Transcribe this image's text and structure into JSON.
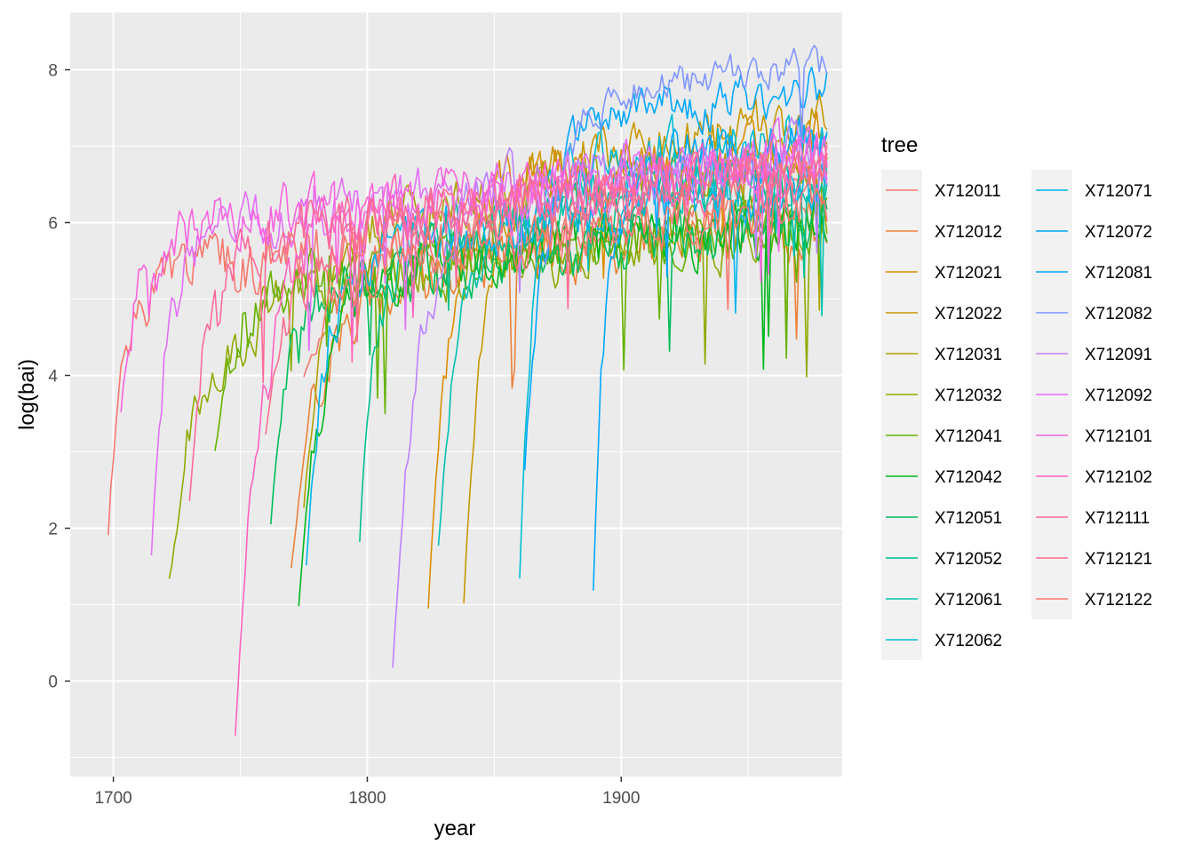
{
  "chart_data": {
    "type": "line",
    "xlabel": "year",
    "ylabel": "log(bai)",
    "xlim": [
      1683,
      1987
    ],
    "ylim": [
      -1.25,
      8.75
    ],
    "x_ticks": [
      1700,
      1800,
      1900
    ],
    "y_ticks": [
      0,
      2,
      4,
      6,
      8
    ],
    "grid": true,
    "background": "#ebebeb",
    "legend": {
      "title": "tree",
      "position": "right",
      "columns": 2
    },
    "x_end": 1981,
    "series": [
      {
        "name": "X712011",
        "color": "#F8766D",
        "start_year": 1698,
        "start_value": 1.9,
        "plateau": 5.8,
        "growth_years": 20,
        "noise": 0.35,
        "seed": 1
      },
      {
        "name": "X712012",
        "color": "#EC8239",
        "start_year": 1770,
        "start_value": 1.5,
        "plateau": 5.5,
        "growth_years": 35,
        "noise": 0.32,
        "seed": 2
      },
      {
        "name": "X712021",
        "color": "#DB8E00",
        "start_year": 1824,
        "start_value": 1.0,
        "plateau": 6.6,
        "growth_years": 25,
        "noise": 0.3,
        "seed": 3
      },
      {
        "name": "X712022",
        "color": "#C79800",
        "start_year": 1838,
        "start_value": 1.1,
        "plateau": 6.8,
        "growth_years": 25,
        "noise": 0.3,
        "seed": 4
      },
      {
        "name": "X712031",
        "color": "#AEA200",
        "start_year": 1775,
        "start_value": 2.2,
        "plateau": 6.3,
        "growth_years": 30,
        "noise": 0.3,
        "seed": 5
      },
      {
        "name": "X712032",
        "color": "#8FAA00",
        "start_year": 1722,
        "start_value": 1.3,
        "plateau": 5.5,
        "growth_years": 45,
        "noise": 0.3,
        "seed": 6
      },
      {
        "name": "X712041",
        "color": "#64B200",
        "start_year": 1740,
        "start_value": 3.0,
        "plateau": 5.6,
        "growth_years": 30,
        "noise": 0.3,
        "seed": 7
      },
      {
        "name": "X712042",
        "color": "#00B81B",
        "start_year": 1773,
        "start_value": 1.0,
        "plateau": 5.6,
        "growth_years": 30,
        "noise": 0.32,
        "seed": 8
      },
      {
        "name": "X712051",
        "color": "#00BD5C",
        "start_year": 1762,
        "start_value": 2.1,
        "plateau": 5.5,
        "growth_years": 25,
        "noise": 0.3,
        "seed": 9
      },
      {
        "name": "X712052",
        "color": "#00C08D",
        "start_year": 1797,
        "start_value": 1.9,
        "plateau": 6.0,
        "growth_years": 20,
        "noise": 0.3,
        "seed": 10
      },
      {
        "name": "X712061",
        "color": "#00C1B2",
        "start_year": 1828,
        "start_value": 1.7,
        "plateau": 6.2,
        "growth_years": 25,
        "noise": 0.3,
        "seed": 11
      },
      {
        "name": "X712062",
        "color": "#00BDD4",
        "start_year": 1860,
        "start_value": 1.3,
        "plateau": 6.7,
        "growth_years": 15,
        "noise": 0.3,
        "seed": 12
      },
      {
        "name": "X712071",
        "color": "#00B5EE",
        "start_year": 1776,
        "start_value": 1.5,
        "plateau": 6.0,
        "growth_years": 25,
        "noise": 0.3,
        "seed": 13
      },
      {
        "name": "X712072",
        "color": "#00A7FF",
        "start_year": 1889,
        "start_value": 1.2,
        "plateau": 6.6,
        "growth_years": 15,
        "noise": 0.3,
        "seed": 14
      },
      {
        "name": "X712081",
        "color": "#00A7FF",
        "start_year": 1862,
        "start_value": 2.8,
        "plateau": 7.3,
        "growth_years": 25,
        "noise": 0.25,
        "seed": 15
      },
      {
        "name": "X712082",
        "color": "#7F96FF",
        "start_year": 1870,
        "start_value": 5.5,
        "plateau": 7.6,
        "growth_years": 30,
        "noise": 0.2,
        "seed": 16
      },
      {
        "name": "X712091",
        "color": "#BC81FF",
        "start_year": 1810,
        "start_value": 0.1,
        "plateau": 6.5,
        "growth_years": 30,
        "noise": 0.3,
        "seed": 17
      },
      {
        "name": "X712092",
        "color": "#E26EF7",
        "start_year": 1715,
        "start_value": 1.6,
        "plateau": 6.4,
        "growth_years": 20,
        "noise": 0.3,
        "seed": 18
      },
      {
        "name": "X712101",
        "color": "#F863DF",
        "start_year": 1703,
        "start_value": 3.5,
        "plateau": 6.4,
        "growth_years": 25,
        "noise": 0.3,
        "seed": 19
      },
      {
        "name": "X712102",
        "color": "#FF62BF",
        "start_year": 1748,
        "start_value": -0.7,
        "plateau": 6.3,
        "growth_years": 30,
        "noise": 0.32,
        "seed": 20
      },
      {
        "name": "X712111",
        "color": "#FF6A98",
        "start_year": 1730,
        "start_value": 2.4,
        "plateau": 6.2,
        "growth_years": 25,
        "noise": 0.3,
        "seed": 21
      },
      {
        "name": "X712121",
        "color": "#FF6C91",
        "start_year": 1760,
        "start_value": 3.3,
        "plateau": 6.2,
        "growth_years": 35,
        "noise": 0.3,
        "seed": 22
      },
      {
        "name": "X712122",
        "color": "#F8766D",
        "start_year": 1775,
        "start_value": 3.9,
        "plateau": 5.8,
        "growth_years": 50,
        "noise": 0.3,
        "seed": 23
      }
    ]
  }
}
